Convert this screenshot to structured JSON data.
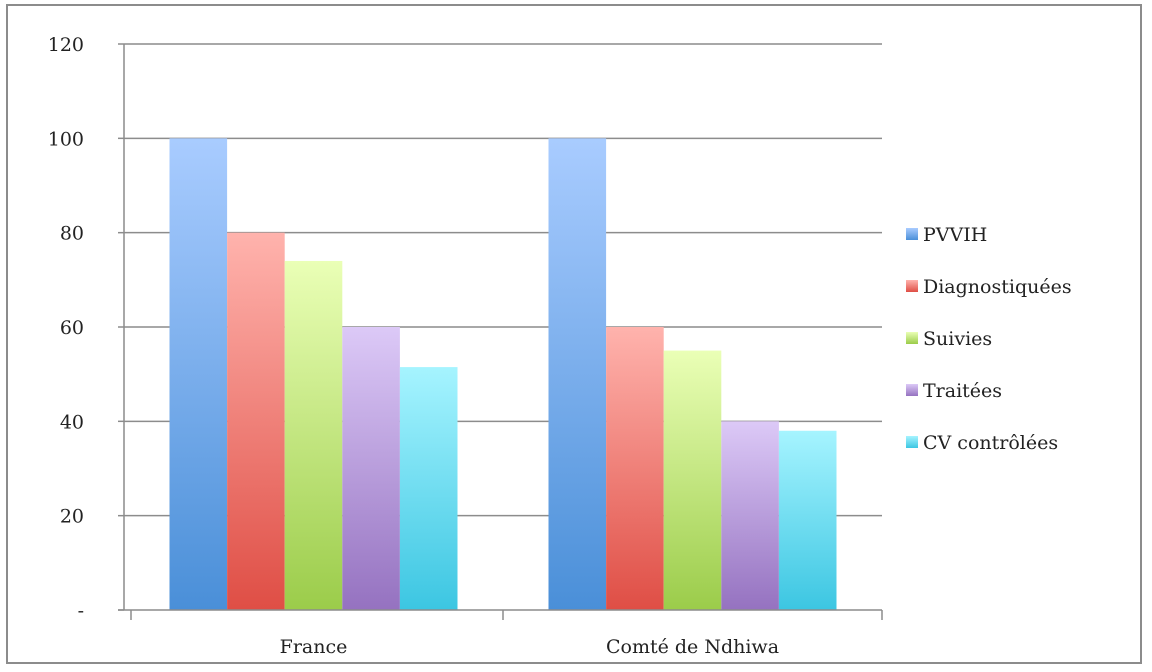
{
  "chart_data": {
    "type": "bar",
    "categories": [
      "France",
      "Comté de Ndhiwa"
    ],
    "series": [
      {
        "name": "PVVIH",
        "values": [
          100,
          100
        ],
        "color": "#5b9bd5",
        "color_light": "#a9ccff",
        "color_dark": "#4a8fd8"
      },
      {
        "name": "Diagnostiquées",
        "values": [
          80,
          60
        ],
        "color": "#e8584e",
        "color_light": "#ffb3ad",
        "color_dark": "#df4e45"
      },
      {
        "name": "Suivies",
        "values": [
          74,
          55
        ],
        "color": "#9fcf4e",
        "color_light": "#eaffb6",
        "color_dark": "#9bcc4a"
      },
      {
        "name": "Traitées",
        "values": [
          60,
          40
        ],
        "color": "#9b79c4",
        "color_light": "#dcc9f7",
        "color_dark": "#9572c0"
      },
      {
        "name": "CV contrôlées",
        "values": [
          51.5,
          38
        ],
        "color": "#3ec9e4",
        "color_light": "#a6f4ff",
        "color_dark": "#3cc6e2"
      }
    ],
    "ylim": [
      0,
      120
    ],
    "yticks": [
      0,
      20,
      40,
      60,
      80,
      100,
      120
    ],
    "ytick_labels": [
      "-",
      "20",
      "40",
      "60",
      "80",
      "100",
      "120"
    ],
    "grid": true,
    "legend": "right"
  }
}
